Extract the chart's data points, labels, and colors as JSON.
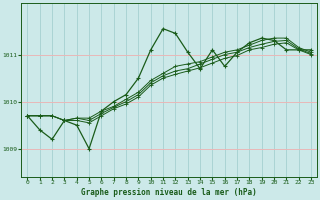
{
  "bg_color": "#cce9e9",
  "grid_color_v": "#aad4d4",
  "grid_color_h": "#e8b8b8",
  "line_color": "#1a5c1a",
  "title": "Graphe pression niveau de la mer (hPa)",
  "title_color": "#1a5c1a",
  "xlim": [
    -0.5,
    23.5
  ],
  "ylim": [
    1008.4,
    1012.1
  ],
  "yticks": [
    1009,
    1010,
    1011
  ],
  "xticks": [
    0,
    1,
    2,
    3,
    4,
    5,
    6,
    7,
    8,
    9,
    10,
    11,
    12,
    13,
    14,
    15,
    16,
    17,
    18,
    19,
    20,
    21,
    22,
    23
  ],
  "series": [
    [
      1009.7,
      1009.4,
      1009.2,
      1009.6,
      1009.5,
      1009.0,
      1009.8,
      1010.0,
      1010.15,
      1010.5,
      1011.1,
      1011.55,
      1011.45,
      1011.05,
      1010.7,
      1011.1,
      1010.75,
      1011.05,
      1011.25,
      1011.35,
      1011.3,
      1011.1,
      1011.1,
      1011.1
    ],
    [
      1009.7,
      1009.7,
      1009.7,
      1009.6,
      1009.65,
      1009.65,
      1009.8,
      1009.9,
      1010.05,
      1010.2,
      1010.45,
      1010.6,
      1010.75,
      1010.8,
      1010.85,
      1010.95,
      1011.05,
      1011.1,
      1011.2,
      1011.3,
      1011.35,
      1011.35,
      1011.15,
      1011.05
    ],
    [
      1009.7,
      1009.7,
      1009.7,
      1009.6,
      1009.65,
      1009.6,
      1009.75,
      1009.88,
      1010.0,
      1010.15,
      1010.4,
      1010.55,
      1010.65,
      1010.7,
      1010.8,
      1010.9,
      1011.0,
      1011.05,
      1011.15,
      1011.22,
      1011.28,
      1011.3,
      1011.12,
      1011.02
    ],
    [
      1009.7,
      1009.7,
      1009.7,
      1009.6,
      1009.6,
      1009.55,
      1009.7,
      1009.85,
      1009.95,
      1010.1,
      1010.35,
      1010.5,
      1010.58,
      1010.65,
      1010.72,
      1010.82,
      1010.92,
      1010.98,
      1011.1,
      1011.15,
      1011.22,
      1011.25,
      1011.1,
      1011.0
    ]
  ]
}
